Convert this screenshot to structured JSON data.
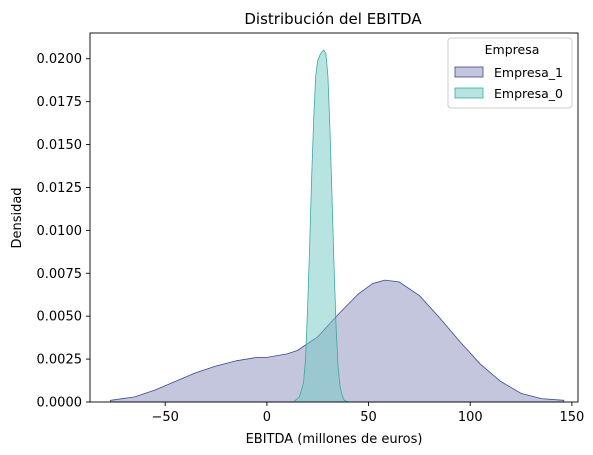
{
  "chart_data": {
    "type": "area",
    "title": "Distribución del EBITDA",
    "xlabel": "EBITDA (millones de euros)",
    "ylabel": "Densidad",
    "xlim": [
      -87,
      153
    ],
    "ylim": [
      0,
      0.0215
    ],
    "x_ticks": [
      -50,
      0,
      50,
      100,
      150
    ],
    "x_tick_labels": [
      "−50",
      "0",
      "50",
      "100",
      "150"
    ],
    "y_ticks": [
      0,
      0.0025,
      0.005,
      0.0075,
      0.01,
      0.0125,
      0.015,
      0.0175,
      0.02
    ],
    "y_tick_labels": [
      "0.0000",
      "0.0025",
      "0.0050",
      "0.0075",
      "0.0100",
      "0.0125",
      "0.0150",
      "0.0175",
      "0.0200"
    ],
    "grid": false,
    "legend": {
      "title": "Empresa",
      "placement": "top-right"
    },
    "series": [
      {
        "name": "Empresa_1",
        "fill": "#8a8ebc",
        "stroke": "#3b4a8c",
        "x": [
          -77,
          -65,
          -55,
          -45,
          -35,
          -25,
          -15,
          -5,
          0,
          10,
          15,
          25,
          35,
          45,
          52,
          58,
          65,
          75,
          85,
          95,
          105,
          115,
          125,
          135,
          146
        ],
        "y": [
          0.0001,
          0.0003,
          0.0007,
          0.0012,
          0.0017,
          0.0021,
          0.0024,
          0.0026,
          0.0026,
          0.0028,
          0.003,
          0.0038,
          0.0051,
          0.0063,
          0.0069,
          0.0071,
          0.007,
          0.0062,
          0.0049,
          0.0035,
          0.0022,
          0.0012,
          0.0005,
          0.0002,
          0.0001
        ]
      },
      {
        "name": "Empresa_0",
        "fill": "#6fc8c4",
        "stroke": "#3aa8a4",
        "x": [
          13,
          16,
          18,
          19,
          20,
          21,
          22,
          23,
          24,
          25,
          26,
          27,
          28,
          29,
          30,
          31,
          32,
          33,
          34,
          35,
          36,
          37,
          38,
          40
        ],
        "y": [
          0.0,
          0.0003,
          0.0011,
          0.0025,
          0.0055,
          0.009,
          0.013,
          0.0165,
          0.019,
          0.0199,
          0.0202,
          0.0204,
          0.0205,
          0.0203,
          0.019,
          0.016,
          0.012,
          0.008,
          0.0045,
          0.002,
          0.0009,
          0.0004,
          0.0001,
          0.0
        ]
      }
    ]
  }
}
